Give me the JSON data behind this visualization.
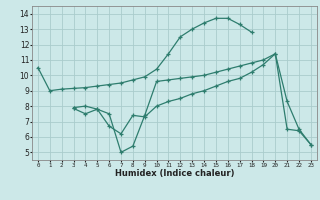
{
  "bg_color": "#cce8e8",
  "grid_color": "#aacccc",
  "line_color": "#2e7d6e",
  "line1_x": [
    0,
    1,
    2,
    3,
    4,
    5,
    6,
    7,
    8,
    9,
    10,
    11,
    12,
    13,
    14,
    15,
    16,
    17,
    18
  ],
  "line1_y": [
    10.5,
    9.0,
    9.1,
    9.15,
    9.2,
    9.3,
    9.4,
    9.5,
    9.7,
    9.9,
    10.4,
    11.4,
    12.5,
    13.0,
    13.4,
    13.7,
    13.7,
    13.3,
    12.8
  ],
  "line2_x": [
    3,
    4,
    5,
    6,
    7,
    8,
    9,
    10,
    11,
    12,
    13,
    14,
    15,
    16,
    17,
    18,
    19,
    20,
    21,
    22,
    23
  ],
  "line2_y": [
    7.85,
    7.5,
    7.8,
    6.7,
    6.2,
    7.4,
    7.3,
    8.0,
    8.3,
    8.5,
    8.8,
    9.0,
    9.3,
    9.6,
    9.8,
    10.2,
    10.7,
    11.4,
    8.3,
    6.5,
    5.5
  ],
  "line3_x": [
    3,
    4,
    5,
    6,
    7,
    8,
    9,
    10,
    11,
    12,
    13,
    14,
    15,
    16,
    17,
    18,
    19,
    20,
    21,
    22,
    23
  ],
  "line3_y": [
    7.9,
    8.0,
    7.8,
    7.5,
    5.0,
    5.4,
    7.4,
    9.6,
    9.7,
    9.8,
    9.9,
    10.0,
    10.2,
    10.4,
    10.6,
    10.8,
    11.0,
    11.4,
    6.5,
    6.4,
    5.5
  ],
  "xlabel": "Humidex (Indice chaleur)",
  "xlim": [
    -0.5,
    23.5
  ],
  "ylim": [
    4.5,
    14.5
  ],
  "yticks": [
    5,
    6,
    7,
    8,
    9,
    10,
    11,
    12,
    13,
    14
  ],
  "xticks": [
    0,
    1,
    2,
    3,
    4,
    5,
    6,
    7,
    8,
    9,
    10,
    11,
    12,
    13,
    14,
    15,
    16,
    17,
    18,
    19,
    20,
    21,
    22,
    23
  ]
}
